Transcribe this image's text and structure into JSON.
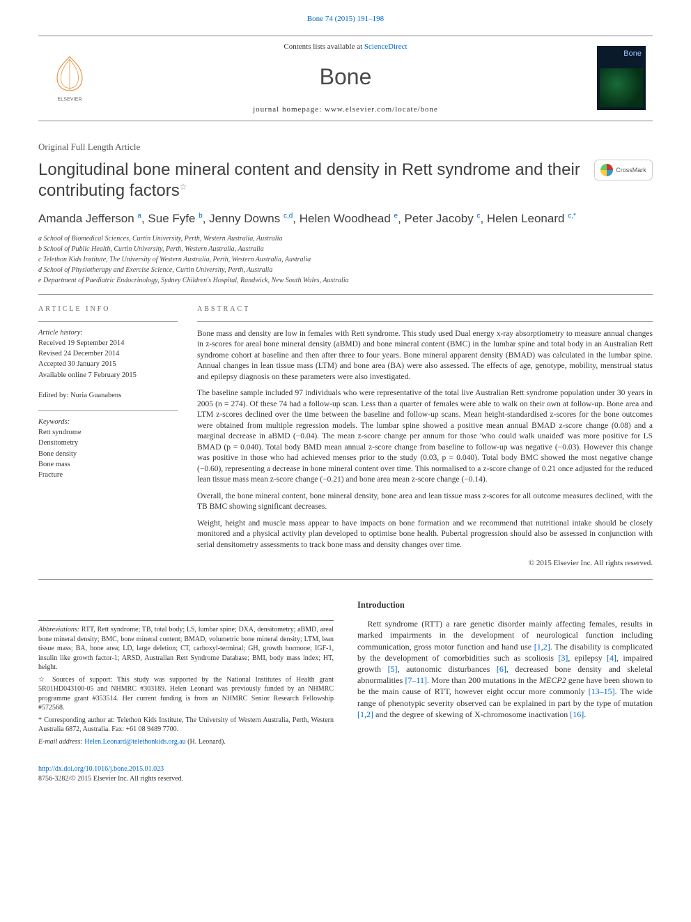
{
  "citation": {
    "journal": "Bone 74 (2015) 191–198"
  },
  "masthead": {
    "contents_prefix": "Contents lists available at ",
    "contents_link": "ScienceDirect",
    "journal_name": "Bone",
    "homepage_prefix": "journal homepage: ",
    "homepage_url": "www.elsevier.com/locate/bone",
    "publisher_name": "ELSEVIER",
    "cover_label": "Bone"
  },
  "article": {
    "type": "Original Full Length Article",
    "title": "Longitudinal bone mineral content and density in Rett syndrome and their contributing factors",
    "crossmark_label": "CrossMark"
  },
  "authors_line": "Amanda Jefferson ",
  "authors": [
    {
      "name": "Amanda Jefferson ",
      "aff": "a"
    },
    {
      "name": ", Sue Fyfe ",
      "aff": "b"
    },
    {
      "name": ", Jenny Downs ",
      "aff": "c,d"
    },
    {
      "name": ", Helen Woodhead ",
      "aff": "e"
    },
    {
      "name": ", Peter Jacoby ",
      "aff": "c"
    },
    {
      "name": ", Helen Leonard ",
      "aff": "c,*"
    }
  ],
  "affiliations": [
    "a School of Biomedical Sciences, Curtin University, Perth, Western Australia, Australia",
    "b School of Public Health, Curtin University, Perth, Western Australia, Australia",
    "c Telethon Kids Institute, The University of Western Australia, Perth, Western Australia, Australia",
    "d School of Physiotherapy and Exercise Science, Curtin University, Perth, Australia",
    "e Department of Paediatric Endocrinology, Sydney Children's Hospital, Randwick, New South Wales, Australia"
  ],
  "article_info": {
    "label": "ARTICLE INFO",
    "history_hdr": "Article history:",
    "history": [
      "Received 19 September 2014",
      "Revised 24 December 2014",
      "Accepted 30 January 2015",
      "Available online 7 February 2015"
    ],
    "edited_by": "Edited by: Nuria Guanabens",
    "keywords_hdr": "Keywords:",
    "keywords": [
      "Rett syndrome",
      "Densitometry",
      "Bone density",
      "Bone mass",
      "Fracture"
    ]
  },
  "abstract": {
    "label": "ABSTRACT",
    "p1": "Bone mass and density are low in females with Rett syndrome. This study used Dual energy x-ray absorptiometry to measure annual changes in z-scores for areal bone mineral density (aBMD) and bone mineral content (BMC) in the lumbar spine and total body in an Australian Rett syndrome cohort at baseline and then after three to four years. Bone mineral apparent density (BMAD) was calculated in the lumbar spine. Annual changes in lean tissue mass (LTM) and bone area (BA) were also assessed. The effects of age, genotype, mobility, menstrual status and epilepsy diagnosis on these parameters were also investigated.",
    "p2": "The baseline sample included 97 individuals who were representative of the total live Australian Rett syndrome population under 30 years in 2005 (n = 274). Of these 74 had a follow-up scan. Less than a quarter of females were able to walk on their own at follow-up. Bone area and LTM z-scores declined over the time between the baseline and follow-up scans. Mean height-standardised z-scores for the bone outcomes were obtained from multiple regression models. The lumbar spine showed a positive mean annual BMAD z-score change (0.08) and a marginal decrease in aBMD (−0.04). The mean z-score change per annum for those 'who could walk unaided' was more positive for LS BMAD (p = 0.040). Total body BMD mean annual z-score change from baseline to follow-up was negative (−0.03). However this change was positive in those who had achieved menses prior to the study (0.03, p = 0.040). Total body BMC showed the most negative change (−0.60), representing a decrease in bone mineral content over time. This normalised to a z-score change of 0.21 once adjusted for the reduced lean tissue mass mean z-score change (−0.21) and bone area mean z-score change (−0.14).",
    "p3": "Overall, the bone mineral content, bone mineral density, bone area and lean tissue mass z-scores for all outcome measures declined, with the TB BMC showing significant decreases.",
    "p4": "Weight, height and muscle mass appear to have impacts on bone formation and we recommend that nutritional intake should be closely monitored and a physical activity plan developed to optimise bone health. Pubertal progression should also be assessed in conjunction with serial densitometry assessments to track bone mass and density changes over time.",
    "copyright": "© 2015 Elsevier Inc. All rights reserved."
  },
  "footnotes": {
    "abbrev_label": "Abbreviations:",
    "abbrev": " RTT, Rett syndrome; TB, total body; LS, lumbar spine; DXA, densitometry; aBMD, areal bone mineral density; BMC, bone mineral content; BMAD, volumetric bone mineral density; LTM, lean tissue mass; BA, bone area; LD, large deletion; CT, carboxyl-terminal; GH, growth hormone; IGF-1, insulin like growth factor-1; ARSD, Australian Rett Syndrome Database; BMI, body mass index; HT, height.",
    "support_label": "☆  Sources of support",
    "support": ": This study was supported by the National Institutes of Health grant 5R01HD043100-05 and NHMRC #303189. Helen Leonard was previously funded by an NHMRC programme grant #353514. Her current funding is from an NHMRC Senior Research Fellowship #572568.",
    "corr_label": "*  Corresponding author at:",
    "corr": " Telethon Kids Institute, The University of Western Australia, Perth, Western Australia 6872, Australia. Fax: +61 08 9489 7700.",
    "email_label": "E-mail address: ",
    "email": "Helen.Leonard@telethonkids.org.au",
    "email_suffix": " (H. Leonard)."
  },
  "intro": {
    "heading": "Introduction",
    "p1a": "Rett syndrome (RTT) a rare genetic disorder mainly affecting females, results in marked impairments in the development of neurological function including communication, gross motor function and hand use ",
    "r1": "[1,2]",
    "p1b": ". The disability is complicated by the development of comorbidities such as scoliosis ",
    "r2": "[3]",
    "p1c": ", epilepsy ",
    "r3": "[4]",
    "p1d": ", impaired growth ",
    "r4": "[5]",
    "p1e": ", autonomic disturbances ",
    "r5": "[6]",
    "p1f": ", decreased bone density and skeletal abnormalities ",
    "r6": "[7–11]",
    "p1g": ". More than 200 mutations in the ",
    "gene": "MECP2",
    "p1h": " gene have been shown to be the main cause of RTT, however eight occur more commonly ",
    "r7": "[13–15]",
    "p1i": ". The wide range of phenotypic severity observed can be explained in part by the type of mutation ",
    "r8": "[1,2]",
    "p1j": " and the degree of skewing of X-chromosome inactivation ",
    "r9": "[16]",
    "p1k": "."
  },
  "doi": {
    "url": "http://dx.doi.org/10.1016/j.bone.2015.01.023",
    "issn_line": "8756-3282/© 2015 Elsevier Inc. All rights reserved."
  },
  "colors": {
    "link": "#0066cc",
    "text": "#333333",
    "heading": "#404040",
    "rule": "#999999"
  }
}
